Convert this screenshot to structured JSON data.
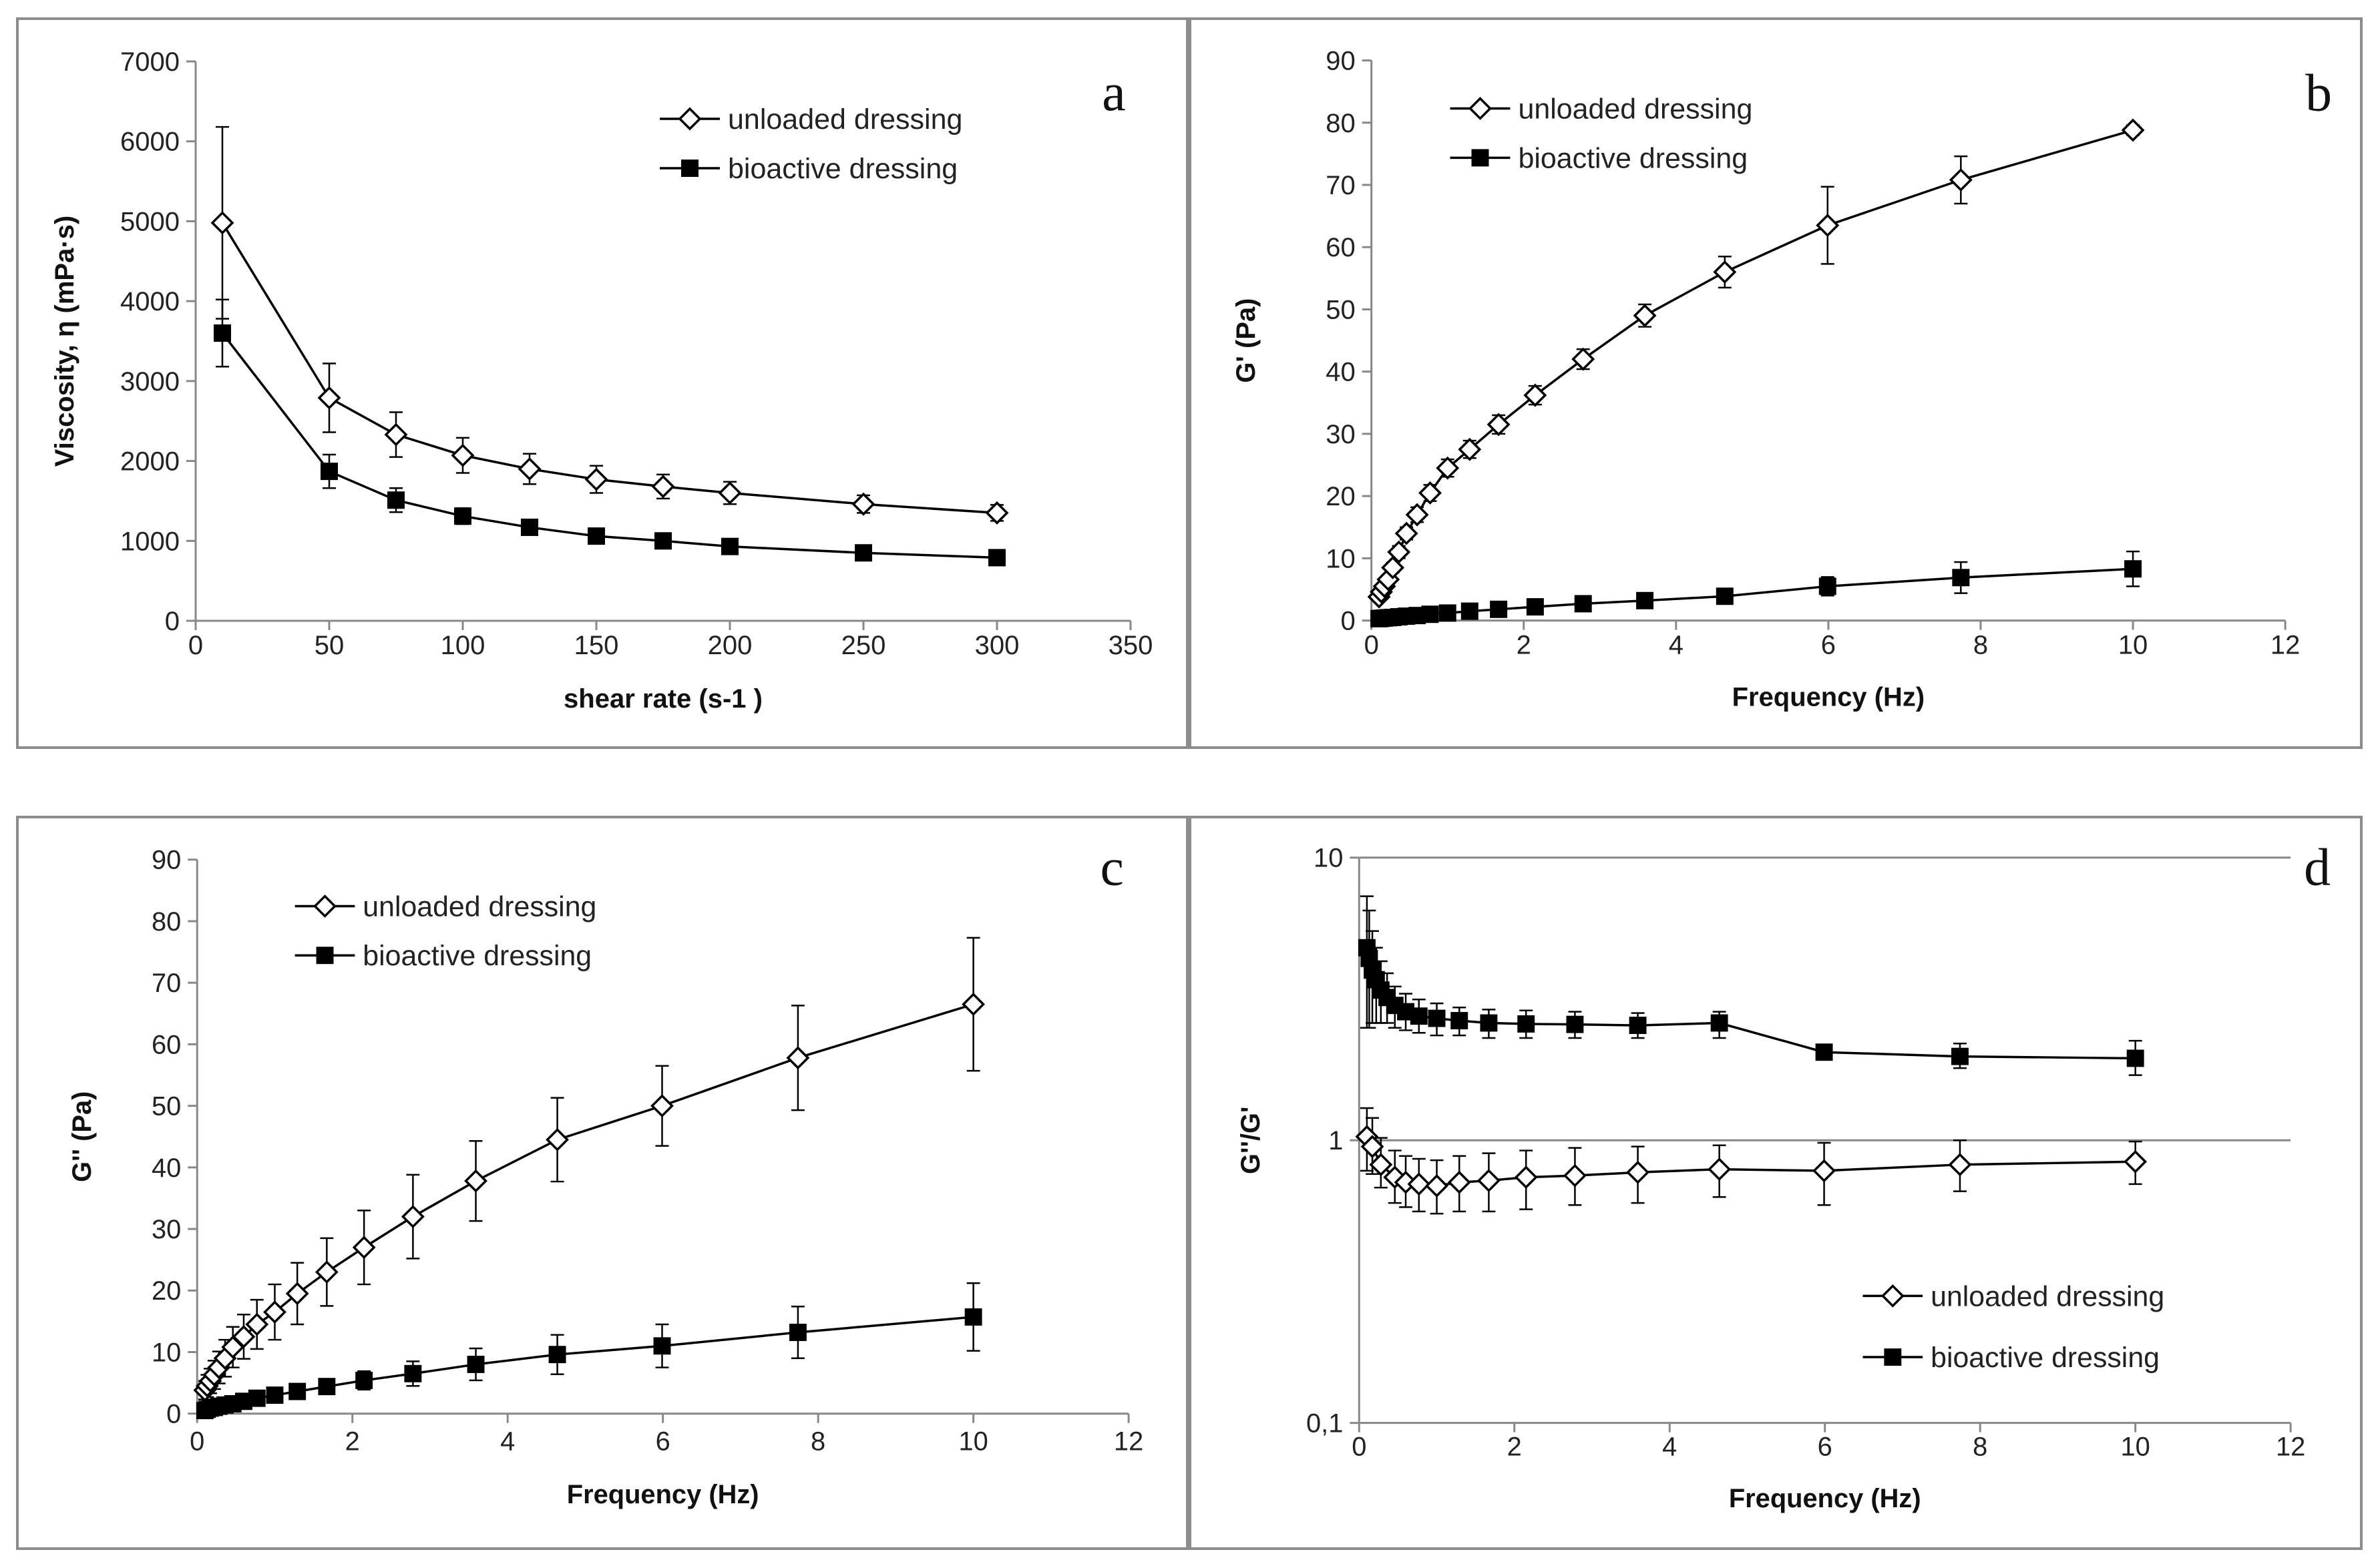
{
  "chart_data": [
    {
      "id": "a",
      "type": "line",
      "panel_label": "a",
      "xlabel": "shear rate  (s-1 )",
      "ylabel": "Viscosity, η (mPa·s)",
      "xlim": [
        0,
        350
      ],
      "ylim": [
        0,
        7000
      ],
      "yscale": "linear",
      "xticks": [
        0,
        50,
        100,
        150,
        200,
        250,
        300,
        350
      ],
      "yticks": [
        0,
        1000,
        2000,
        3000,
        4000,
        5000,
        6000,
        7000
      ],
      "xtick_labels": [
        "0",
        "50",
        "100",
        "150",
        "200",
        "250",
        "300",
        "350"
      ],
      "ytick_labels": [
        "0",
        "1000",
        "2000",
        "3000",
        "4000",
        "5000",
        "6000",
        "7000"
      ],
      "legend_position": "top-right",
      "series": [
        {
          "name": "unloaded dressing",
          "marker": "diamond-open",
          "x": [
            10,
            50,
            75,
            100,
            125,
            150,
            175,
            200,
            250,
            300
          ],
          "y": [
            4980,
            2790,
            2330,
            2070,
            1900,
            1770,
            1680,
            1600,
            1460,
            1350
          ],
          "err": [
            1200,
            430,
            280,
            220,
            190,
            170,
            150,
            140,
            110,
            100
          ]
        },
        {
          "name": "bioactive dressing",
          "marker": "square-filled",
          "x": [
            10,
            50,
            75,
            100,
            125,
            150,
            175,
            200,
            250,
            300
          ],
          "y": [
            3600,
            1870,
            1510,
            1310,
            1170,
            1060,
            1000,
            930,
            850,
            790
          ],
          "err": [
            420,
            210,
            150,
            100,
            80,
            70,
            60,
            55,
            50,
            45
          ]
        }
      ]
    },
    {
      "id": "b",
      "type": "line",
      "panel_label": "b",
      "xlabel": "Frequency (Hz)",
      "ylabel": "G' (Pa)",
      "xlim": [
        0,
        12
      ],
      "ylim": [
        0,
        90
      ],
      "yscale": "linear",
      "xticks": [
        0,
        2,
        4,
        6,
        8,
        10,
        12
      ],
      "yticks": [
        0,
        10,
        20,
        30,
        40,
        50,
        60,
        70,
        80,
        90
      ],
      "xtick_labels": [
        "0",
        "2",
        "4",
        "6",
        "8",
        "10",
        "12"
      ],
      "ytick_labels": [
        "0",
        "10",
        "20",
        "30",
        "40",
        "50",
        "60",
        "70",
        "80",
        "90"
      ],
      "legend_position": "top-left",
      "series": [
        {
          "name": "unloaded dressing",
          "marker": "diamond-open",
          "x": [
            0.1,
            0.13,
            0.17,
            0.22,
            0.28,
            0.36,
            0.46,
            0.6,
            0.77,
            1.0,
            1.29,
            1.67,
            2.15,
            2.78,
            3.59,
            4.64,
            5.99,
            7.74,
            10.0
          ],
          "y": [
            3.8,
            4.6,
            5.5,
            6.6,
            8.5,
            11.0,
            14.0,
            17.0,
            20.5,
            24.5,
            27.5,
            31.5,
            36.2,
            42.0,
            49.0,
            56.0,
            63.5,
            70.8,
            78.8
          ],
          "err": [
            0.5,
            0.5,
            0.6,
            0.7,
            0.8,
            1.0,
            1.0,
            1.2,
            1.3,
            1.4,
            1.4,
            1.5,
            1.5,
            1.6,
            1.8,
            2.5,
            6.2,
            3.8,
            0.8
          ]
        },
        {
          "name": "bioactive dressing",
          "marker": "square-filled",
          "x": [
            0.1,
            0.13,
            0.17,
            0.22,
            0.28,
            0.36,
            0.46,
            0.6,
            0.77,
            1.0,
            1.29,
            1.67,
            2.15,
            2.78,
            3.59,
            4.64,
            5.99,
            7.74,
            10.0
          ],
          "y": [
            0.3,
            0.35,
            0.4,
            0.45,
            0.5,
            0.6,
            0.7,
            0.8,
            1.0,
            1.2,
            1.5,
            1.8,
            2.2,
            2.7,
            3.2,
            3.9,
            5.5,
            6.9,
            8.3
          ],
          "err": [
            0.2,
            0.2,
            0.2,
            0.2,
            0.2,
            0.2,
            0.2,
            0.3,
            0.3,
            0.3,
            0.3,
            0.4,
            0.4,
            0.5,
            0.6,
            0.8,
            1.5,
            2.5,
            2.8
          ]
        }
      ]
    },
    {
      "id": "c",
      "type": "line",
      "panel_label": "c",
      "xlabel": "Frequency (Hz)",
      "ylabel": "G'' (Pa)",
      "xlim": [
        0,
        12
      ],
      "ylim": [
        0,
        90
      ],
      "yscale": "linear",
      "xticks": [
        0,
        2,
        4,
        6,
        8,
        10,
        12
      ],
      "yticks": [
        0,
        10,
        20,
        30,
        40,
        50,
        60,
        70,
        80,
        90
      ],
      "xtick_labels": [
        "0",
        "2",
        "4",
        "6",
        "8",
        "10",
        "12"
      ],
      "ytick_labels": [
        "0",
        "10",
        "20",
        "30",
        "40",
        "50",
        "60",
        "70",
        "80",
        "90"
      ],
      "legend_position": "top-left",
      "series": [
        {
          "name": "unloaded dressing",
          "marker": "diamond-open",
          "x": [
            0.1,
            0.13,
            0.17,
            0.22,
            0.28,
            0.36,
            0.46,
            0.6,
            0.77,
            1.0,
            1.29,
            1.67,
            2.15,
            2.78,
            3.59,
            4.64,
            5.99,
            7.74,
            10.0
          ],
          "y": [
            3.8,
            4.5,
            5.3,
            6.3,
            7.5,
            9.0,
            10.8,
            12.5,
            14.5,
            16.5,
            19.5,
            23.0,
            27.0,
            32.0,
            37.8,
            44.5,
            50.0,
            57.8,
            66.5
          ],
          "err": [
            1.5,
            1.8,
            2.0,
            2.3,
            2.6,
            3.0,
            3.3,
            3.6,
            4.0,
            4.5,
            5.0,
            5.5,
            6.0,
            6.8,
            6.5,
            6.8,
            6.5,
            8.5,
            10.8
          ]
        },
        {
          "name": "bioactive dressing",
          "marker": "square-filled",
          "x": [
            0.1,
            0.13,
            0.17,
            0.22,
            0.28,
            0.36,
            0.46,
            0.6,
            0.77,
            1.0,
            1.29,
            1.67,
            2.15,
            2.78,
            3.59,
            4.64,
            5.99,
            7.74,
            10.0
          ],
          "y": [
            0.5,
            0.7,
            0.9,
            1.0,
            1.2,
            1.4,
            1.6,
            2.0,
            2.5,
            3.0,
            3.6,
            4.4,
            5.4,
            6.5,
            8.0,
            9.6,
            11.0,
            13.2,
            15.7
          ],
          "err": [
            0.3,
            0.3,
            0.4,
            0.4,
            0.4,
            0.5,
            0.5,
            0.6,
            0.7,
            0.8,
            0.9,
            1.0,
            1.5,
            2.0,
            2.6,
            3.2,
            3.5,
            4.2,
            5.5
          ]
        }
      ]
    },
    {
      "id": "d",
      "type": "line",
      "panel_label": "d",
      "xlabel": "Frequency (Hz)",
      "ylabel": "G''/G'",
      "xlim": [
        0,
        12
      ],
      "ylim": [
        0.1,
        10
      ],
      "yscale": "log",
      "xticks": [
        0,
        2,
        4,
        6,
        8,
        10,
        12
      ],
      "yticks": [
        0.1,
        1,
        10
      ],
      "xtick_labels": [
        "0",
        "2",
        "4",
        "6",
        "8",
        "10",
        "12"
      ],
      "ytick_labels": [
        "0,1",
        "1",
        "10"
      ],
      "legend_position": "bottom-right",
      "series": [
        {
          "name": "unloaded dressing",
          "marker": "diamond-open",
          "x": [
            0.1,
            0.17,
            0.28,
            0.46,
            0.6,
            0.77,
            1.0,
            1.29,
            1.67,
            2.15,
            2.78,
            3.59,
            4.64,
            5.99,
            7.74,
            10.0
          ],
          "y": [
            1.03,
            0.95,
            0.82,
            0.74,
            0.71,
            0.7,
            0.69,
            0.71,
            0.72,
            0.74,
            0.75,
            0.77,
            0.79,
            0.78,
            0.82,
            0.84
          ],
          "err_low": [
            0.78,
            0.76,
            0.68,
            0.6,
            0.58,
            0.56,
            0.55,
            0.56,
            0.56,
            0.57,
            0.59,
            0.6,
            0.63,
            0.59,
            0.66,
            0.7
          ],
          "err_high": [
            1.3,
            1.2,
            1.02,
            0.92,
            0.88,
            0.86,
            0.85,
            0.88,
            0.9,
            0.92,
            0.94,
            0.95,
            0.96,
            0.98,
            1.0,
            0.99
          ]
        },
        {
          "name": "bioactive dressing",
          "marker": "square-filled",
          "x": [
            0.1,
            0.13,
            0.17,
            0.22,
            0.28,
            0.36,
            0.46,
            0.6,
            0.77,
            1.0,
            1.29,
            1.67,
            2.15,
            2.78,
            3.59,
            4.64,
            5.99,
            7.74,
            10.0
          ],
          "y": [
            4.8,
            4.4,
            4.0,
            3.7,
            3.4,
            3.2,
            3.0,
            2.85,
            2.75,
            2.7,
            2.65,
            2.6,
            2.58,
            2.57,
            2.55,
            2.6,
            2.05,
            1.98,
            1.95
          ],
          "err_low": [
            2.5,
            2.5,
            2.6,
            2.6,
            2.6,
            2.6,
            2.5,
            2.45,
            2.4,
            2.35,
            2.35,
            2.3,
            2.3,
            2.3,
            2.3,
            2.3,
            1.95,
            1.8,
            1.7
          ],
          "err_high": [
            7.3,
            6.5,
            5.5,
            4.8,
            4.3,
            3.9,
            3.5,
            3.3,
            3.15,
            3.05,
            2.95,
            2.9,
            2.88,
            2.85,
            2.82,
            2.85,
            2.15,
            2.2,
            2.25
          ]
        }
      ]
    }
  ]
}
